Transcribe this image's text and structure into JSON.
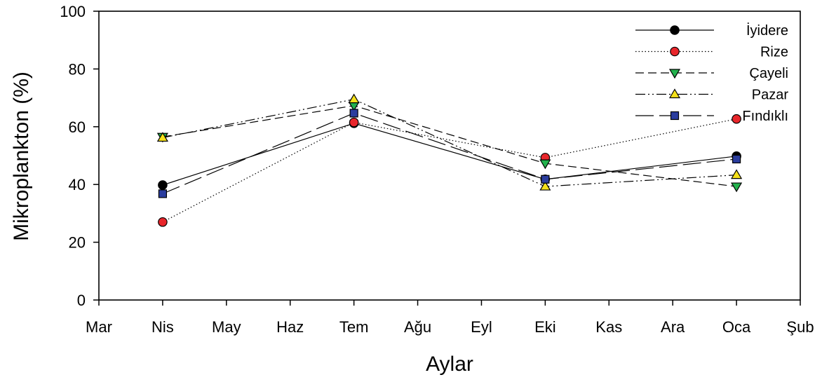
{
  "chart_data": {
    "type": "line",
    "title": "",
    "xlabel": "Aylar",
    "ylabel": "Mikroplankton (%)",
    "categories": [
      "Mar",
      "Nis",
      "May",
      "Haz",
      "Tem",
      "Ağu",
      "Eyl",
      "Eki",
      "Kas",
      "Ara",
      "Oca",
      "Şub"
    ],
    "ylim": [
      0,
      100
    ],
    "yticks": [
      0,
      20,
      40,
      60,
      80,
      100
    ],
    "grid": false,
    "legend_position": "top-right",
    "series": [
      {
        "name": "İyidere",
        "x": [
          "Nis",
          "Tem",
          "Eki",
          "Oca"
        ],
        "values": [
          39.8,
          61.2,
          41.8,
          49.8
        ],
        "marker": "circle",
        "fill": "#000000",
        "dash": "solid"
      },
      {
        "name": "Rize",
        "x": [
          "Nis",
          "Tem",
          "Eki",
          "Oca"
        ],
        "values": [
          27.0,
          61.5,
          49.3,
          62.7
        ],
        "marker": "circle",
        "fill": "#e8262b",
        "dash": "dotted"
      },
      {
        "name": "Çayeli",
        "x": [
          "Nis",
          "Tem",
          "Eki",
          "Oca"
        ],
        "values": [
          56.5,
          67.3,
          47.3,
          39.3
        ],
        "marker": "triangle-down",
        "fill": "#22b14c",
        "dash": "dashed"
      },
      {
        "name": "Pazar",
        "x": [
          "Nis",
          "Tem",
          "Eki",
          "Oca"
        ],
        "values": [
          56.2,
          69.5,
          39.3,
          43.3
        ],
        "marker": "triangle-up",
        "fill": "#f5e11a",
        "dash": "dash-dot-dot"
      },
      {
        "name": "Fındıklı",
        "x": [
          "Nis",
          "Tem",
          "Eki",
          "Oca"
        ],
        "values": [
          36.8,
          64.7,
          41.8,
          48.8
        ],
        "marker": "square",
        "fill": "#2b3d9e",
        "dash": "long-dash"
      }
    ]
  }
}
